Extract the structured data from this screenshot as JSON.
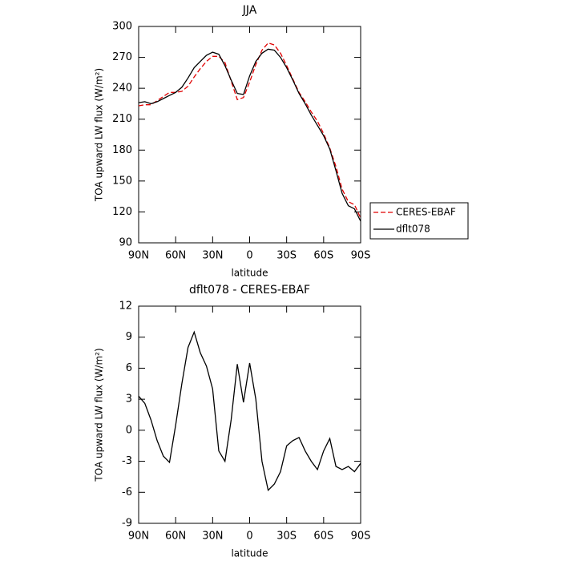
{
  "chart_data": [
    {
      "type": "line",
      "title": "JJA",
      "xlabel": "latitude",
      "ylabel": "TOA upward LW flux (W/m²)",
      "x": [
        90,
        85,
        80,
        75,
        70,
        65,
        60,
        55,
        50,
        45,
        40,
        35,
        30,
        25,
        20,
        15,
        10,
        5,
        0,
        -5,
        -10,
        -15,
        -20,
        -25,
        -30,
        -35,
        -40,
        -45,
        -50,
        -55,
        -60,
        -65,
        -70,
        -75,
        -80,
        -85,
        -90
      ],
      "series": [
        {
          "name": "CERES-EBAF",
          "color": "#e00000",
          "dash": true,
          "values": [
            223,
            224,
            224,
            228,
            232,
            236,
            236,
            237,
            242,
            251,
            259,
            266,
            271,
            271,
            265,
            247,
            229,
            231,
            246,
            263,
            277,
            284,
            282,
            274,
            262,
            249,
            236,
            227,
            217,
            208,
            196,
            182,
            164,
            142,
            130,
            127,
            114
          ]
        },
        {
          "name": "dflt078",
          "color": "#000000",
          "dash": false,
          "values": [
            226,
            227,
            225,
            227,
            230,
            233,
            236,
            241,
            250,
            260,
            266,
            272,
            275,
            273,
            262,
            248,
            235,
            234,
            252,
            266,
            274,
            278,
            277,
            270,
            260,
            248,
            235,
            225,
            214,
            204,
            194,
            181,
            160,
            138,
            126,
            123,
            111
          ]
        }
      ],
      "xlim": [
        90,
        -90
      ],
      "xticks": [
        {
          "value": 90,
          "label": "90N"
        },
        {
          "value": 60,
          "label": "60N"
        },
        {
          "value": 30,
          "label": "30N"
        },
        0,
        {
          "value": -30,
          "label": "30S"
        },
        {
          "value": -60,
          "label": "60S"
        },
        {
          "value": -90,
          "label": "90S"
        }
      ],
      "ylim": [
        90,
        300
      ],
      "yticks": [
        90,
        120,
        150,
        180,
        210,
        240,
        270,
        300
      ],
      "legend": "right"
    },
    {
      "type": "line",
      "title": "dflt078 - CERES-EBAF",
      "xlabel": "latitude",
      "ylabel": "TOA upward LW flux (W/m²)",
      "x": [
        90,
        85,
        80,
        75,
        70,
        65,
        60,
        55,
        50,
        45,
        40,
        35,
        30,
        25,
        20,
        15,
        10,
        5,
        0,
        -5,
        -10,
        -15,
        -20,
        -25,
        -30,
        -35,
        -40,
        -45,
        -50,
        -55,
        -60,
        -65,
        -70,
        -75,
        -80,
        -85,
        -90
      ],
      "color": "#000000",
      "values": [
        3.3,
        2.6,
        1,
        -1,
        -2.5,
        -3.1,
        0.5,
        4.5,
        8,
        9.5,
        7.5,
        6.2,
        4,
        -2,
        -3,
        1,
        6.4,
        2.7,
        6.5,
        3,
        -3,
        -5.8,
        -5.2,
        -4,
        -1.5,
        -1,
        -0.7,
        -2,
        -3,
        -3.8,
        -2,
        -0.8,
        -3.5,
        -3.8,
        -3.5,
        -4,
        -3.2
      ],
      "xlim": [
        90,
        -90
      ],
      "xticks": [
        {
          "value": 90,
          "label": "90N"
        },
        {
          "value": 60,
          "label": "60N"
        },
        {
          "value": 30,
          "label": "30N"
        },
        0,
        {
          "value": -30,
          "label": "30S"
        },
        {
          "value": -60,
          "label": "60S"
        },
        {
          "value": -90,
          "label": "90S"
        }
      ],
      "ylim": [
        -9,
        12
      ],
      "yticks": [
        -9,
        -6,
        -3,
        0,
        3,
        6,
        9,
        12
      ]
    }
  ]
}
